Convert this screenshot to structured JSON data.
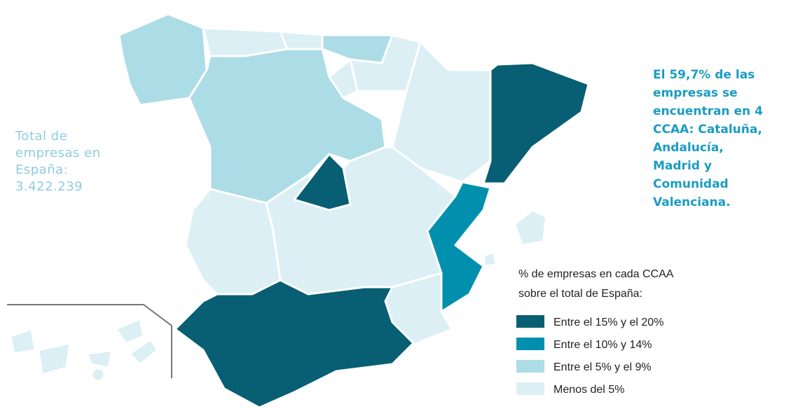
{
  "left_note": {
    "lines": [
      "Total de",
      "empresas en",
      "España:",
      "3.422.239"
    ]
  },
  "right_note": {
    "lines": [
      "El 59,7% de las",
      "empresas se",
      "encuentran en 4",
      "CCAA: Cataluña,",
      "Andalucía,",
      "Madrid y",
      "Comunidad",
      "Valenciana."
    ]
  },
  "legend": {
    "title": [
      "% de empresas en cada CCAA",
      "sobre el total de España:"
    ],
    "items": [
      {
        "label": "Entre el 15% y el 20%",
        "color": "#085f73"
      },
      {
        "label": "Entre el 10% y 14%",
        "color": "#0090ae"
      },
      {
        "label": "Entre el 5% y el 9%",
        "color": "#acdce6"
      },
      {
        "label": "Menos del 5%",
        "color": "#dbeff5"
      }
    ]
  }
}
